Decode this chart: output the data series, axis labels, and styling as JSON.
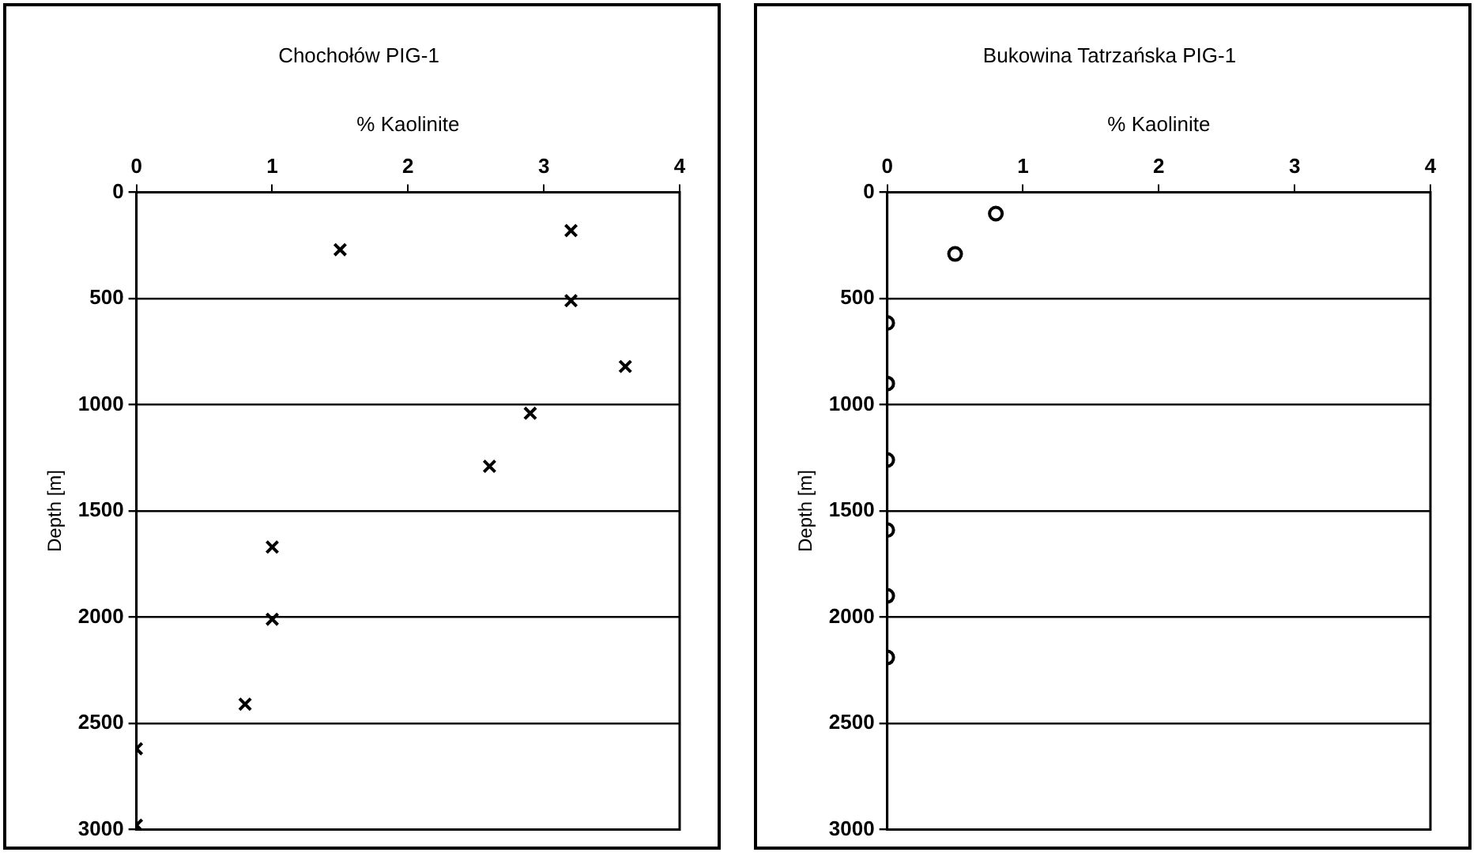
{
  "chart_data": [
    {
      "type": "scatter",
      "title": "Chochołów PIG-1",
      "xlabel": "% Kaolinite",
      "ylabel": "Depth [m]",
      "xlim": [
        0,
        4
      ],
      "xticks": [
        0,
        1,
        2,
        3,
        4
      ],
      "ylim": [
        3000,
        0
      ],
      "yticks": [
        0,
        500,
        1000,
        1500,
        2000,
        2500,
        3000
      ],
      "grid": "y",
      "legend": false,
      "marker": "cross",
      "series": [
        {
          "color": "#000000",
          "x": [
            3.2,
            1.5,
            3.2,
            3.6,
            2.9,
            2.6,
            1.0,
            1.0,
            0.8,
            0,
            0
          ],
          "values": [
            180,
            270,
            510,
            820,
            1040,
            1290,
            1670,
            2010,
            2410,
            2620,
            2980
          ]
        }
      ]
    },
    {
      "type": "scatter",
      "title": "Bukowina Tatrzańska PIG-1",
      "xlabel": "% Kaolinite",
      "ylabel": "Depth [m]",
      "xlim": [
        0,
        4
      ],
      "xticks": [
        0,
        1,
        2,
        3,
        4
      ],
      "ylim": [
        3000,
        0
      ],
      "yticks": [
        0,
        500,
        1000,
        1500,
        2000,
        2500,
        3000
      ],
      "grid": "y",
      "legend": false,
      "marker": "circle",
      "series": [
        {
          "color": "#000000",
          "x": [
            0.8,
            0.5,
            0,
            0,
            0,
            0,
            0,
            0
          ],
          "values": [
            100,
            290,
            615,
            900,
            1260,
            1590,
            1900,
            2190
          ]
        }
      ]
    }
  ]
}
